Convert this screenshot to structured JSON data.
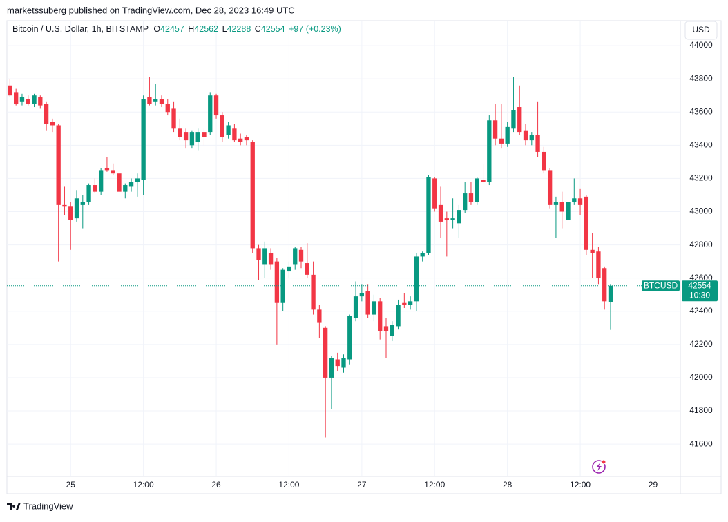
{
  "header": {
    "publisher": "marketssuberg published on TradingView.com, Dec 28, 2023 16:49 UTC",
    "symbol": "Bitcoin / U.S. Dollar, 1h, BITSTAMP",
    "o_label": "O",
    "h_label": "H",
    "l_label": "L",
    "c_label": "C",
    "change_label": "+97 (+0.23%)",
    "currency": "USD",
    "ticker": "BTCUSD",
    "countdown": "10:30",
    "brand": "TradingView"
  },
  "chart_data": {
    "type": "candlestick",
    "up_color": "#089981",
    "down_color": "#f23645",
    "grid": true,
    "open": [
      43760,
      43720,
      43660,
      43680,
      43650,
      43690,
      43650,
      43540,
      43520,
      43040,
      43030,
      42960,
      43040,
      43060,
      43160,
      43120,
      43260,
      43250,
      43230,
      43120,
      43150,
      43180,
      43190,
      43690,
      43660,
      43680,
      43650,
      43620,
      43500,
      43480,
      43400,
      43420,
      43480,
      43480,
      43700,
      43580,
      43460,
      43500,
      43440,
      43450,
      43420,
      42780,
      42680,
      42750,
      42700,
      42450,
      42640,
      42680,
      42770,
      42690,
      42620,
      42410,
      42300,
      42000,
      42110,
      42060,
      42110,
      42360,
      42490,
      42520,
      42380,
      42460,
      42310,
      42250,
      42310,
      42450,
      42440,
      42460,
      42730,
      42750,
      43200,
      43040,
      42960,
      42950,
      42930,
      43010,
      43110,
      43060,
      43190,
      43180,
      43550,
      43440,
      43410,
      43500,
      43630,
      43490,
      43430,
      43460,
      43360,
      43250,
      43040,
      43060,
      42950,
      43060,
      43080,
      43090,
      42770,
      42760,
      42660,
      42457
    ],
    "high": [
      43800,
      43740,
      43710,
      43700,
      43710,
      43700,
      43660,
      43560,
      43530,
      43150,
      43060,
      43130,
      43100,
      43170,
      43200,
      43260,
      43330,
      43290,
      43240,
      43170,
      43200,
      43230,
      43700,
      43810,
      43770,
      43700,
      43680,
      43660,
      43560,
      43500,
      43490,
      43500,
      43500,
      43720,
      43710,
      43600,
      43540,
      43530,
      43470,
      43460,
      43430,
      42800,
      42820,
      42780,
      42720,
      42660,
      42700,
      42790,
      42790,
      42810,
      42700,
      42440,
      42310,
      42130,
      42150,
      42140,
      42380,
      42580,
      42560,
      42560,
      42500,
      42480,
      42360,
      42340,
      42470,
      42510,
      42490,
      42750,
      42760,
      43220,
      43210,
      43150,
      43000,
      43080,
      43040,
      43180,
      43180,
      43210,
      43290,
      43580,
      43650,
      43650,
      43540,
      43810,
      43760,
      43530,
      43480,
      43660,
      43390,
      43260,
      43090,
      43120,
      43090,
      43200,
      43140,
      43100,
      42870,
      42790,
      42670,
      42562
    ],
    "low": [
      43690,
      43640,
      43640,
      43640,
      43630,
      43620,
      43490,
      43480,
      42700,
      42980,
      42770,
      42940,
      42900,
      43040,
      43110,
      43100,
      43240,
      43220,
      43100,
      43080,
      43120,
      43090,
      43100,
      43640,
      43640,
      43630,
      43580,
      43480,
      43430,
      43380,
      43380,
      43370,
      43400,
      43460,
      43560,
      43420,
      43440,
      43420,
      43400,
      43400,
      42750,
      42590,
      42600,
      42650,
      42200,
      42400,
      42600,
      42650,
      42660,
      42600,
      42380,
      42240,
      41640,
      41810,
      42040,
      42030,
      42080,
      42340,
      42460,
      42360,
      42340,
      42230,
      42120,
      42220,
      42290,
      42420,
      42410,
      42400,
      42700,
      42740,
      43000,
      42840,
      42730,
      42900,
      42840,
      42990,
      43040,
      43040,
      43170,
      43160,
      43400,
      43380,
      43390,
      43480,
      43460,
      43400,
      43400,
      43330,
      43230,
      43020,
      42840,
      42900,
      42880,
      43040,
      42980,
      42740,
      42600,
      42560,
      42410,
      42288
    ],
    "close": [
      43700,
      43650,
      43690,
      43650,
      43700,
      43640,
      43530,
      43520,
      43040,
      43030,
      42950,
      43080,
      43060,
      43160,
      43120,
      43250,
      43250,
      43230,
      43120,
      43160,
      43180,
      43200,
      43680,
      43650,
      43680,
      43650,
      43600,
      43500,
      43450,
      43430,
      43480,
      43480,
      43450,
      43700,
      43580,
      43450,
      43520,
      43430,
      43420,
      43430,
      42780,
      42710,
      42780,
      42680,
      42450,
      42650,
      42670,
      42780,
      42700,
      42620,
      42410,
      42330,
      42000,
      42120,
      42070,
      42120,
      42370,
      42490,
      42510,
      42380,
      42460,
      42280,
      42280,
      42320,
      42440,
      42440,
      42460,
      42730,
      42750,
      43210,
      43020,
      42940,
      42950,
      42960,
      43010,
      43110,
      43060,
      43200,
      43180,
      43550,
      43440,
      43410,
      43510,
      43610,
      43480,
      43430,
      43460,
      43360,
      43250,
      43040,
      43060,
      43000,
      43060,
      43080,
      43040,
      42770,
      42750,
      42600,
      42460,
      42554
    ],
    "xlim": [
      -0.5,
      110.5
    ],
    "xticks": [
      {
        "value": 10,
        "label": "25"
      },
      {
        "value": 22,
        "label": "12:00"
      },
      {
        "value": 34,
        "label": "26"
      },
      {
        "value": 46,
        "label": "12:00"
      },
      {
        "value": 58,
        "label": "27"
      },
      {
        "value": 70,
        "label": "12:00"
      },
      {
        "value": 82,
        "label": "28"
      },
      {
        "value": 94,
        "label": "12:00"
      },
      {
        "value": 106,
        "label": "29"
      }
    ],
    "ylim": [
      41405,
      44150
    ],
    "yticks": [
      41600,
      41800,
      42000,
      42200,
      42400,
      42600,
      42800,
      43000,
      43200,
      43400,
      43600,
      43800,
      44000
    ]
  }
}
